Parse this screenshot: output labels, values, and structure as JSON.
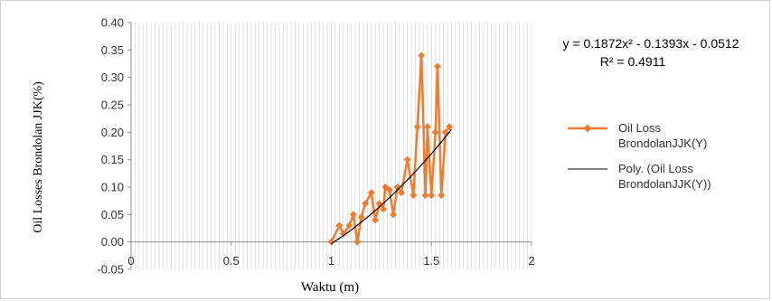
{
  "chart_data": {
    "type": "line",
    "title": "",
    "xlabel": "Waktu (m)",
    "ylabel": "Oil Losses Brondolan JJK(%)",
    "xlim": [
      0,
      2
    ],
    "ylim": [
      -0.05,
      0.4
    ],
    "x_ticks": [
      "0",
      "0.5",
      "1",
      "1.5",
      "2"
    ],
    "y_ticks": [
      "-0.05",
      "0.00",
      "0.05",
      "0.10",
      "0.15",
      "0.20",
      "0.25",
      "0.30",
      "0.35",
      "0.40"
    ],
    "x_tick_values": [
      0,
      0.5,
      1,
      1.5,
      2
    ],
    "y_tick_values": [
      -0.05,
      0,
      0.05,
      0.1,
      0.15,
      0.2,
      0.25,
      0.3,
      0.35,
      0.4
    ],
    "grid": "vertical",
    "legend_position": "right",
    "series": [
      {
        "name": "Oil Loss BrondolanJJK(Y)",
        "color": "#ed7d31",
        "marker": "diamond",
        "x": [
          1.0,
          1.04,
          1.06,
          1.09,
          1.11,
          1.13,
          1.15,
          1.17,
          1.2,
          1.22,
          1.24,
          1.26,
          1.27,
          1.29,
          1.31,
          1.33,
          1.35,
          1.38,
          1.41,
          1.43,
          1.45,
          1.47,
          1.48,
          1.5,
          1.52,
          1.53,
          1.55,
          1.57,
          1.59
        ],
        "y": [
          0.0,
          0.03,
          0.015,
          0.03,
          0.05,
          0.0,
          0.045,
          0.07,
          0.09,
          0.04,
          0.07,
          0.06,
          0.1,
          0.095,
          0.05,
          0.1,
          0.09,
          0.15,
          0.085,
          0.21,
          0.34,
          0.085,
          0.21,
          0.085,
          0.2,
          0.32,
          0.085,
          0.2,
          0.21
        ]
      },
      {
        "name": "Poly. (Oil Loss BrondolanJJK(Y))",
        "color": "#000000",
        "coefficients": [
          0.1872,
          -0.1393,
          -0.0512
        ],
        "x_range": [
          1.0,
          1.6
        ]
      }
    ],
    "annotations": {
      "equation": "y = 0.1872x² - 0.1393x - 0.0512",
      "r_squared": "R² = 0.4911"
    }
  },
  "legend": {
    "items": [
      {
        "line1": "Oil Loss",
        "line2": "BrondolanJJK(Y)"
      },
      {
        "line1": "Poly. (Oil Loss",
        "line2": "BrondolanJJK(Y))"
      }
    ]
  }
}
